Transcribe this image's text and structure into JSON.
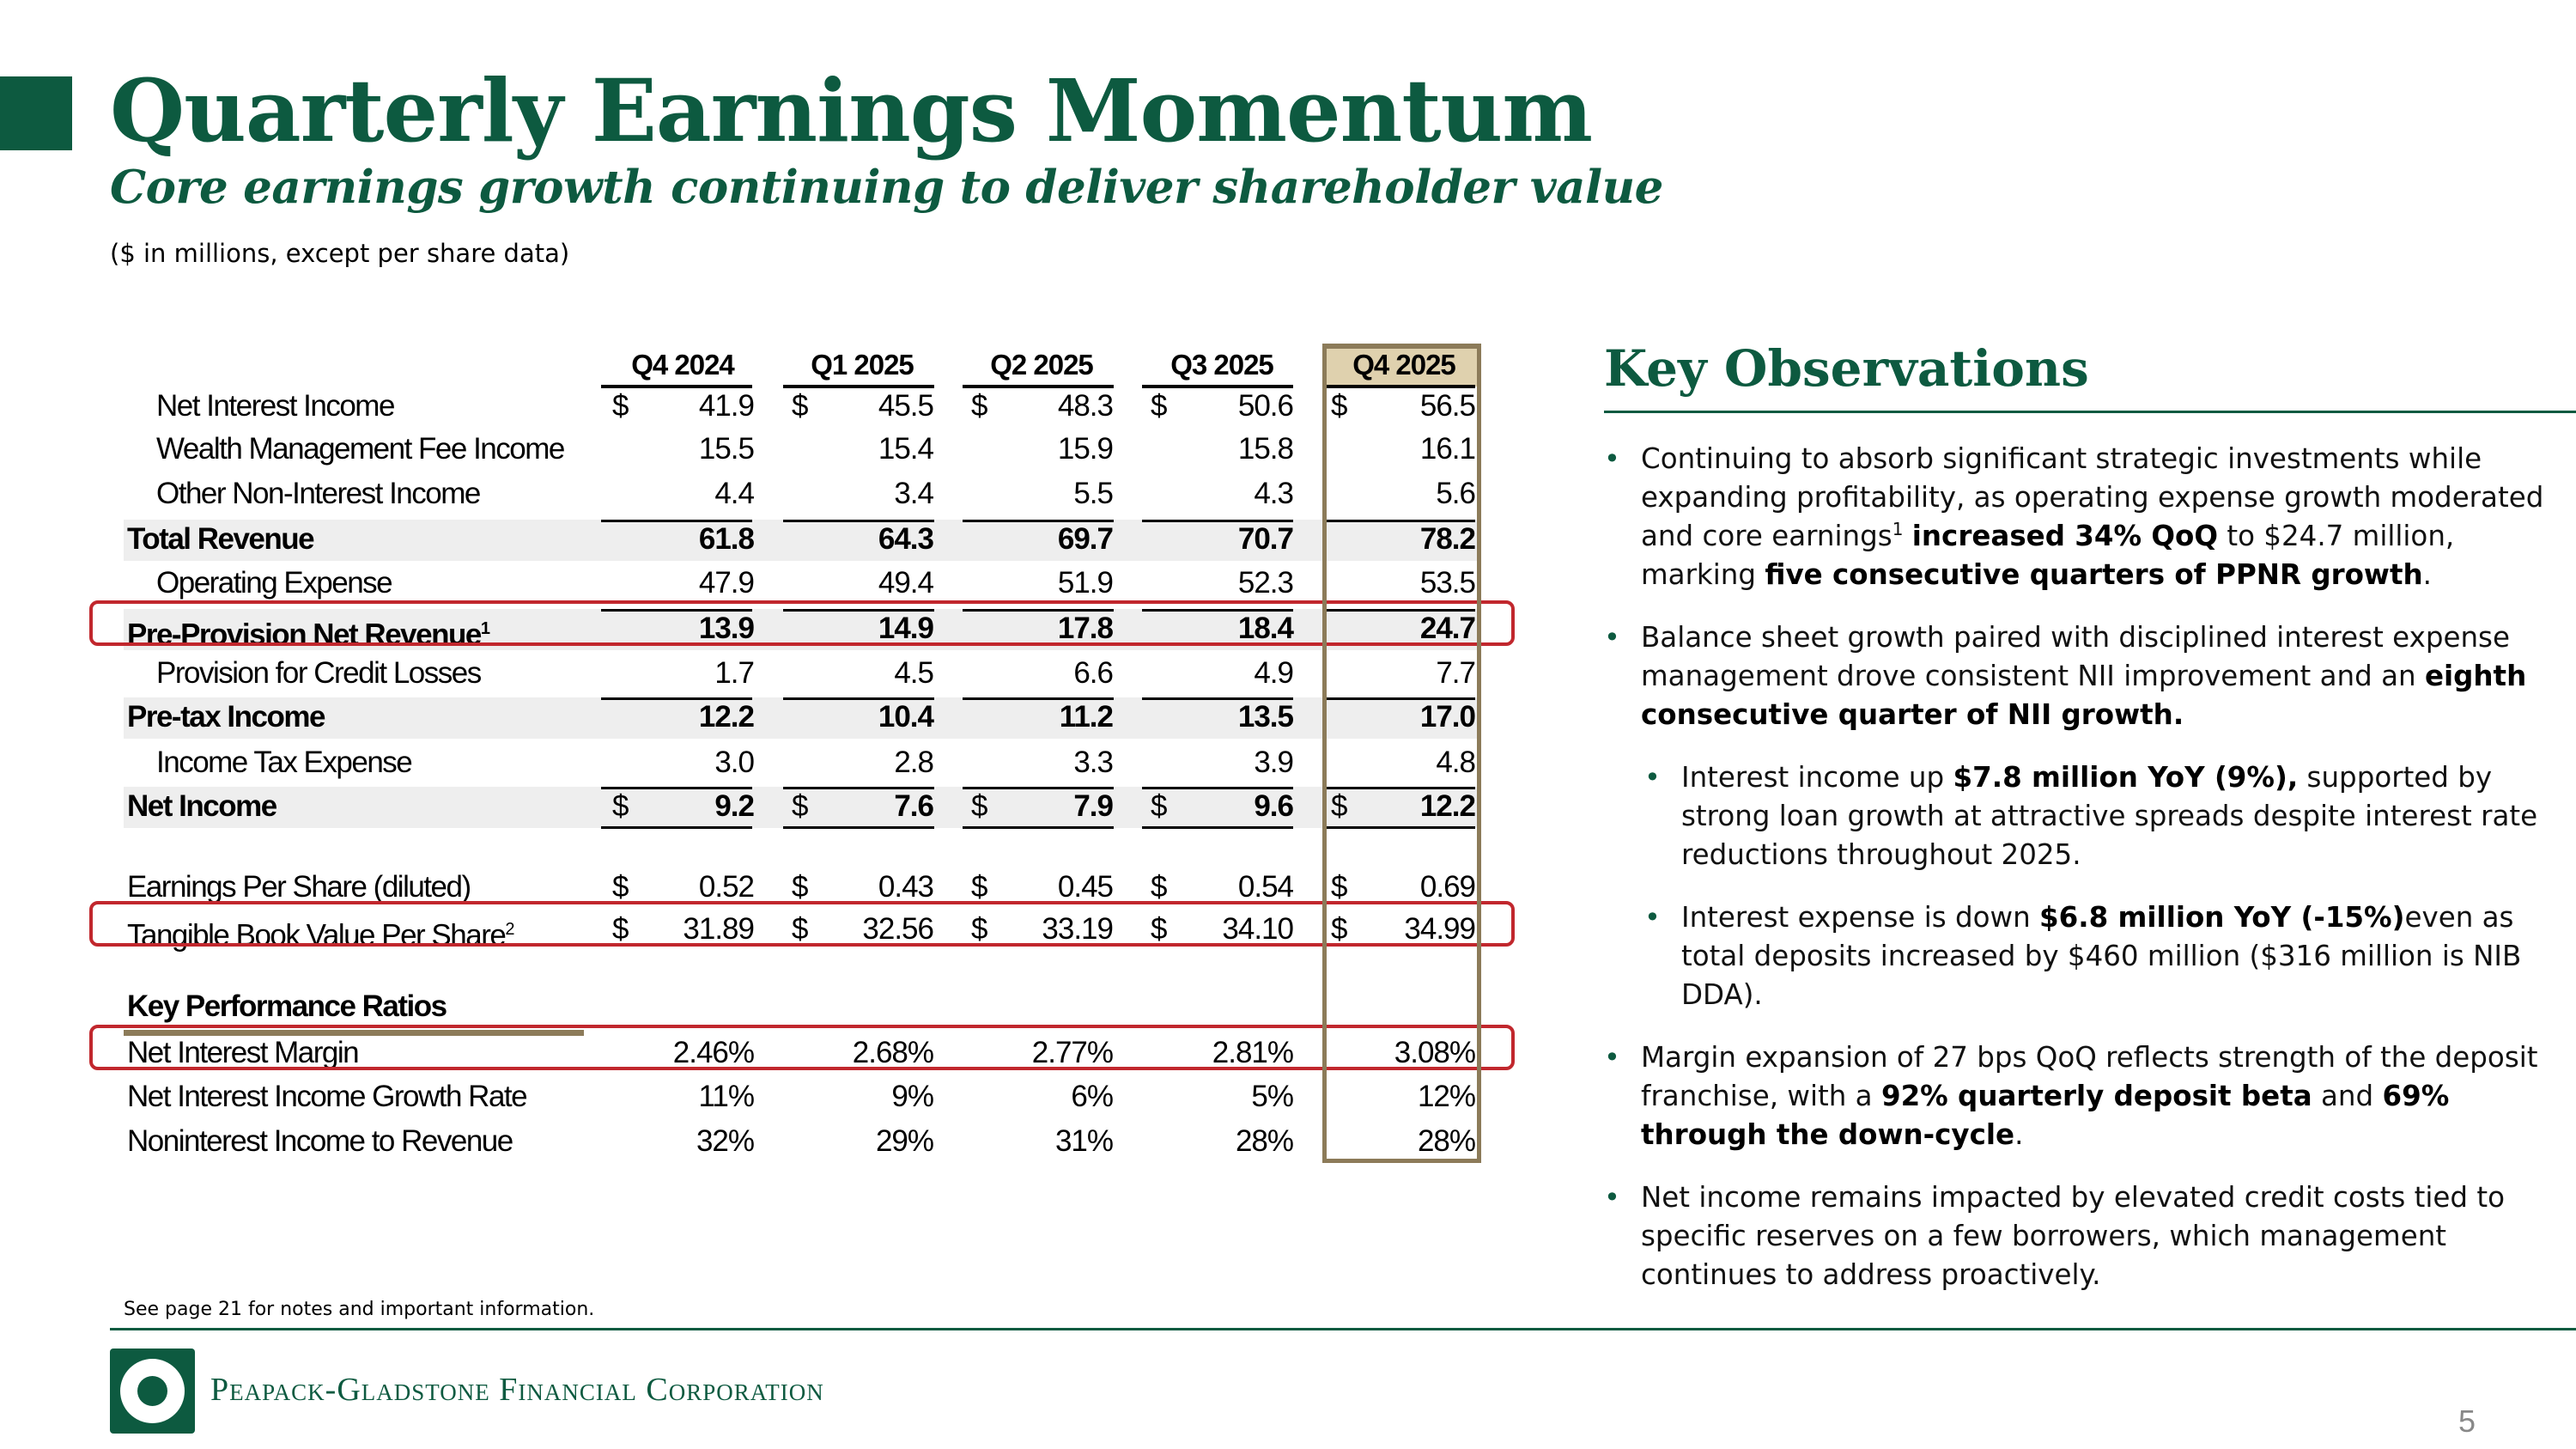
{
  "header": {
    "title": "Quarterly Earnings Momentum",
    "subtitle": "Core earnings growth continuing to deliver shareholder value",
    "units": "($ in millions, except per share data)"
  },
  "table": {
    "columns": [
      "Q4 2024",
      "Q1 2025",
      "Q2 2025",
      "Q3 2025",
      "Q4 2025"
    ],
    "highlight_column": "Q4 2025",
    "rows": [
      {
        "label": "Net Interest Income",
        "values": [
          "41.9",
          "45.5",
          "48.3",
          "50.6",
          "56.5"
        ],
        "dollar": true
      },
      {
        "label": "Wealth Management Fee Income",
        "values": [
          "15.5",
          "15.4",
          "15.9",
          "15.8",
          "16.1"
        ]
      },
      {
        "label": "Other Non-Interest Income",
        "values": [
          "4.4",
          "3.4",
          "5.5",
          "4.3",
          "5.6"
        ]
      },
      {
        "label": "Total Revenue",
        "values": [
          "61.8",
          "64.3",
          "69.7",
          "70.7",
          "78.2"
        ]
      },
      {
        "label": "Operating Expense",
        "values": [
          "47.9",
          "49.4",
          "51.9",
          "52.3",
          "53.5"
        ]
      },
      {
        "label": "Pre-Provision Net Revenue",
        "sup": "1",
        "values": [
          "13.9",
          "14.9",
          "17.8",
          "18.4",
          "24.7"
        ]
      },
      {
        "label": "Provision for Credit Losses",
        "values": [
          "1.7",
          "4.5",
          "6.6",
          "4.9",
          "7.7"
        ]
      },
      {
        "label": "Pre-tax Income",
        "values": [
          "12.2",
          "10.4",
          "11.2",
          "13.5",
          "17.0"
        ]
      },
      {
        "label": "Income Tax Expense",
        "values": [
          "3.0",
          "2.8",
          "3.3",
          "3.9",
          "4.8"
        ]
      },
      {
        "label": "Net Income",
        "values": [
          "9.2",
          "7.6",
          "7.9",
          "9.6",
          "12.2"
        ],
        "dollar": true
      },
      {
        "label": "Earnings Per Share (diluted)",
        "values": [
          "0.52",
          "0.43",
          "0.45",
          "0.54",
          "0.69"
        ],
        "dollar": true
      },
      {
        "label": "Tangible Book Value Per Share",
        "sup": "2",
        "values": [
          "31.89",
          "32.56",
          "33.19",
          "34.10",
          "34.99"
        ],
        "dollar": true
      },
      {
        "label": "Key Performance Ratios"
      },
      {
        "label": "Net Interest Margin",
        "values": [
          "2.46%",
          "2.68%",
          "2.77%",
          "2.81%",
          "3.08%"
        ]
      },
      {
        "label": "Net Interest Income Growth Rate",
        "values": [
          "11%",
          "9%",
          "6%",
          "5%",
          "12%"
        ]
      },
      {
        "label": "Noninterest Income to Revenue",
        "values": [
          "32%",
          "29%",
          "31%",
          "28%",
          "28%"
        ]
      }
    ],
    "dollar_sign": "$",
    "highlight_border_color": "#8c7b59",
    "highlight_fill_color": "#dfd1ae",
    "red_box_color": "#c1272d"
  },
  "observations": {
    "title": "Key Observations",
    "bullet_icon": "•",
    "b1": {
      "t1": "Continuing to absorb significant strategic investments while expanding profitability, as operating expense growth moderated and core earnings",
      "sup": "1",
      "bold1": "increased 34% QoQ",
      "t2": "to $24.7 million, marking",
      "bold2": "five consecutive quarters of PPNR growth",
      "t3": "."
    },
    "b2": {
      "t1": "Balance sheet growth paired with disciplined interest expense management drove consistent NII improvement and an",
      "bold1": "eighth consecutive quarter of NII growth."
    },
    "b3": {
      "t1": "Interest income up",
      "bold1": "$7.8 million YoY (9%),",
      "t2": "supported by strong loan growth at attractive spreads despite interest rate reductions throughout 2025."
    },
    "b4": {
      "t1": "Interest expense is down",
      "bold1": "$6.8 million YoY (-15%)",
      "t2": "even as total deposits increased by $460 million ($316 million is NIB DDA)."
    },
    "b5": {
      "t1": "Margin expansion of 27 bps QoQ reflects strength of the deposit franchise, with a",
      "bold1": "92% quarterly deposit beta",
      "t2": "and",
      "bold2": "69% through the down-cycle",
      "t3": "."
    },
    "b6": {
      "t1": "Net income remains impacted by elevated credit costs tied to specific reserves on a few borrowers, which management continues to address proactively."
    }
  },
  "footer": {
    "footnote": "See page 21 for notes and important information.",
    "company": "Peapack-Gladstone Financial Corporation",
    "logo_icon": "company-seal-icon",
    "page_number": "5"
  },
  "colors": {
    "brand_green": "#0d5a40",
    "band_gray": "#eeeeee"
  }
}
